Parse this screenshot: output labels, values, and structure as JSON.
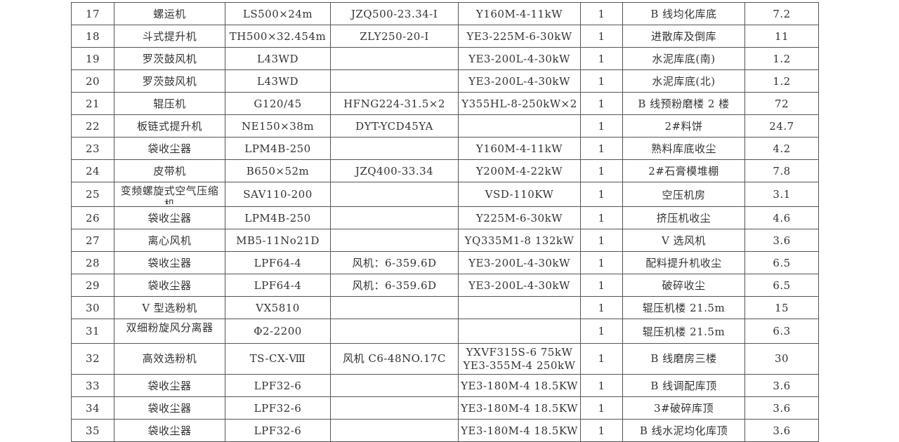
{
  "rows": [
    {
      "no": "17",
      "name": "螺运机",
      "model": "LS500×24m",
      "reducer": "JZQ500-23.34-Ⅰ",
      "motor": "Y160M-4-11kW",
      "qty": "1",
      "location": "B 线均化库底",
      "weight": "7.2"
    },
    {
      "no": "18",
      "name": "斗式提升机",
      "model": "TH500×32.454m",
      "reducer": "ZLY250-20-Ⅰ",
      "motor": "YE3-225M-6-30kW",
      "qty": "1",
      "location": "进散库及倒库",
      "weight": "11"
    },
    {
      "no": "19",
      "name": "罗茨鼓风机",
      "model": "L43WD",
      "reducer": "",
      "motor": "YE3-200L-4-30kW",
      "qty": "1",
      "location": "水泥库底(南)",
      "weight": "1.2"
    },
    {
      "no": "20",
      "name": "罗茨鼓风机",
      "model": "L43WD",
      "reducer": "",
      "motor": "YE3-200L-4-30kW",
      "qty": "1",
      "location": "水泥库底(北)",
      "weight": "1.2"
    },
    {
      "no": "21",
      "name": "辊压机",
      "model": "G120/45",
      "reducer": "HFNG224-31.5×2",
      "motor": "Y355HL-8-250kW×2",
      "qty": "1",
      "location": "B 线预粉磨楼 2 楼",
      "weight": "72"
    },
    {
      "no": "22",
      "name": "板链式提升机",
      "model": "NE150×38m",
      "reducer": "DYT-YCD45YA",
      "motor": "",
      "qty": "1",
      "location": "2#料饼",
      "weight": "24.7"
    },
    {
      "no": "23",
      "name": "袋收尘器",
      "model": "LPM4B-250",
      "reducer": "",
      "motor": "Y160M-4-11kW",
      "qty": "1",
      "location": "熟料库底收尘",
      "weight": "4.2"
    },
    {
      "no": "24",
      "name": "皮带机",
      "model": "B650×52m",
      "reducer": "JZQ400-33.34",
      "motor": "Y200M-4-22kW",
      "qty": "1",
      "location": "2#石膏模堆棚",
      "weight": "7.8"
    },
    {
      "no": "25",
      "name": "变频螺旋式空气压缩机",
      "model": "SAV110-200",
      "reducer": "",
      "motor": "VSD-110KW",
      "qty": "1",
      "location": "空压机房",
      "weight": "3.1"
    },
    {
      "no": "26",
      "name": "袋收尘器",
      "model": "LPM4B-250",
      "reducer": "",
      "motor": "Y225M-6-30kW",
      "qty": "1",
      "location": "挤压机收尘",
      "weight": "4.6"
    },
    {
      "no": "27",
      "name": "离心风机",
      "model": "MB5-11No21D",
      "reducer": "",
      "motor": "YQ335M1-8 132kW",
      "qty": "1",
      "location": "V 选风机",
      "weight": "3.6"
    },
    {
      "no": "28",
      "name": "袋收尘器",
      "model": "LPF64-4",
      "reducer": "风机：6-359.6D",
      "motor": "YE3-200L-4-30kW",
      "qty": "1",
      "location": "配料提升机收尘",
      "weight": "6.5"
    },
    {
      "no": "29",
      "name": "袋收尘器",
      "model": "LPF64-4",
      "reducer": "风机：6-359.6D",
      "motor": "YE3-200L-4-30kW",
      "qty": "1",
      "location": "破碎收尘",
      "weight": "6.5"
    },
    {
      "no": "30",
      "name": "V 型选粉机",
      "model": "VX5810",
      "reducer": "",
      "motor": "",
      "qty": "1",
      "location": "辊压机楼 21.5m",
      "weight": "15"
    },
    {
      "no": "31",
      "name": "双细粉旋风分离器",
      "model": "Φ2-2200",
      "reducer": "",
      "motor": "",
      "qty": "1",
      "location": "辊压机楼 21.5m",
      "weight": "6.3"
    },
    {
      "no": "32",
      "name": "高效选粉机",
      "model": "TS-CX-Ⅷ",
      "reducer": "风机 C6-48NO.17C",
      "motor": "YXVF315S-6 75kW",
      "motor2": "YE3-355M-4 250kW",
      "qty": "1",
      "location": "B 线磨房三楼",
      "weight": "30"
    },
    {
      "no": "33",
      "name": "袋收尘器",
      "model": "LPF32-6",
      "reducer": "",
      "motor": "YE3-180M-4 18.5KW",
      "qty": "1",
      "location": "B 线调配库顶",
      "weight": "3.6"
    },
    {
      "no": "34",
      "name": "袋收尘器",
      "model": "LPF32-6",
      "reducer": "",
      "motor": "YE3-180M-4 18.5KW",
      "qty": "1",
      "location": "3#破碎库顶",
      "weight": "3.6"
    },
    {
      "no": "35",
      "name": "袋收尘器",
      "model": "LPF32-6",
      "reducer": "",
      "motor": "YE3-180M-4 18.5KW",
      "qty": "1",
      "location": "B 线水泥均化库顶",
      "weight": "3.6"
    }
  ]
}
